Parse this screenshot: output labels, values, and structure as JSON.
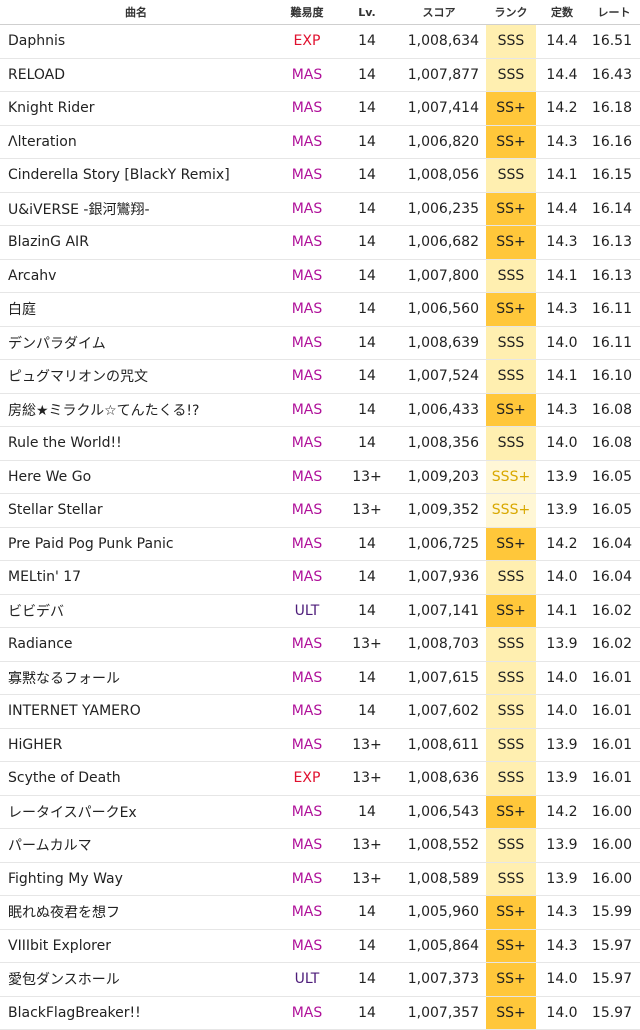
{
  "headers": {
    "name": "曲名",
    "difficulty": "難易度",
    "level": "Lv.",
    "score": "スコア",
    "rank": "ランク",
    "constant": "定数",
    "rate": "レート"
  },
  "colors": {
    "MAS": "#b0129a",
    "EXP": "#e0102e",
    "ULT": "#4d1c7a",
    "SSS": "#ffefb0",
    "SS+": "#ffc73a",
    "SSS+": "#fff7d6"
  },
  "rows": [
    {
      "name": "Daphnis",
      "difficulty": "EXP",
      "level": "14",
      "score": "1,008,634",
      "rank": "SSS",
      "constant": "14.4",
      "rate": "16.51"
    },
    {
      "name": "RELOAD",
      "difficulty": "MAS",
      "level": "14",
      "score": "1,007,877",
      "rank": "SSS",
      "constant": "14.4",
      "rate": "16.43"
    },
    {
      "name": "Knight Rider",
      "difficulty": "MAS",
      "level": "14",
      "score": "1,007,414",
      "rank": "SS+",
      "constant": "14.2",
      "rate": "16.18"
    },
    {
      "name": "Λlteration",
      "difficulty": "MAS",
      "level": "14",
      "score": "1,006,820",
      "rank": "SS+",
      "constant": "14.3",
      "rate": "16.16"
    },
    {
      "name": "Cinderella Story [BlackY Remix]",
      "difficulty": "MAS",
      "level": "14",
      "score": "1,008,056",
      "rank": "SSS",
      "constant": "14.1",
      "rate": "16.15"
    },
    {
      "name": "U&iVERSE -銀河鸞翔-",
      "difficulty": "MAS",
      "level": "14",
      "score": "1,006,235",
      "rank": "SS+",
      "constant": "14.4",
      "rate": "16.14"
    },
    {
      "name": "BlazinG AIR",
      "difficulty": "MAS",
      "level": "14",
      "score": "1,006,682",
      "rank": "SS+",
      "constant": "14.3",
      "rate": "16.13"
    },
    {
      "name": "Arcahv",
      "difficulty": "MAS",
      "level": "14",
      "score": "1,007,800",
      "rank": "SSS",
      "constant": "14.1",
      "rate": "16.13"
    },
    {
      "name": "白庭",
      "difficulty": "MAS",
      "level": "14",
      "score": "1,006,560",
      "rank": "SS+",
      "constant": "14.3",
      "rate": "16.11"
    },
    {
      "name": "デンパラダイム",
      "difficulty": "MAS",
      "level": "14",
      "score": "1,008,639",
      "rank": "SSS",
      "constant": "14.0",
      "rate": "16.11"
    },
    {
      "name": "ピュグマリオンの咒文",
      "difficulty": "MAS",
      "level": "14",
      "score": "1,007,524",
      "rank": "SSS",
      "constant": "14.1",
      "rate": "16.10"
    },
    {
      "name": "房総★ミラクル☆てんたくる!?",
      "difficulty": "MAS",
      "level": "14",
      "score": "1,006,433",
      "rank": "SS+",
      "constant": "14.3",
      "rate": "16.08"
    },
    {
      "name": "Rule the World!!",
      "difficulty": "MAS",
      "level": "14",
      "score": "1,008,356",
      "rank": "SSS",
      "constant": "14.0",
      "rate": "16.08"
    },
    {
      "name": "Here We Go",
      "difficulty": "MAS",
      "level": "13+",
      "score": "1,009,203",
      "rank": "SSS+",
      "constant": "13.9",
      "rate": "16.05"
    },
    {
      "name": "Stellar Stellar",
      "difficulty": "MAS",
      "level": "13+",
      "score": "1,009,352",
      "rank": "SSS+",
      "constant": "13.9",
      "rate": "16.05"
    },
    {
      "name": "Pre Paid Pog Punk Panic",
      "difficulty": "MAS",
      "level": "14",
      "score": "1,006,725",
      "rank": "SS+",
      "constant": "14.2",
      "rate": "16.04"
    },
    {
      "name": "MELtin' 17",
      "difficulty": "MAS",
      "level": "14",
      "score": "1,007,936",
      "rank": "SSS",
      "constant": "14.0",
      "rate": "16.04"
    },
    {
      "name": "ビビデバ",
      "difficulty": "ULT",
      "level": "14",
      "score": "1,007,141",
      "rank": "SS+",
      "constant": "14.1",
      "rate": "16.02"
    },
    {
      "name": "Radiance",
      "difficulty": "MAS",
      "level": "13+",
      "score": "1,008,703",
      "rank": "SSS",
      "constant": "13.9",
      "rate": "16.02"
    },
    {
      "name": "寡黙なるフォール",
      "difficulty": "MAS",
      "level": "14",
      "score": "1,007,615",
      "rank": "SSS",
      "constant": "14.0",
      "rate": "16.01"
    },
    {
      "name": "INTERNET YAMERO",
      "difficulty": "MAS",
      "level": "14",
      "score": "1,007,602",
      "rank": "SSS",
      "constant": "14.0",
      "rate": "16.01"
    },
    {
      "name": "HiGHER",
      "difficulty": "MAS",
      "level": "13+",
      "score": "1,008,611",
      "rank": "SSS",
      "constant": "13.9",
      "rate": "16.01"
    },
    {
      "name": "Scythe of Death",
      "difficulty": "EXP",
      "level": "13+",
      "score": "1,008,636",
      "rank": "SSS",
      "constant": "13.9",
      "rate": "16.01"
    },
    {
      "name": "レータイスパークEx",
      "difficulty": "MAS",
      "level": "14",
      "score": "1,006,543",
      "rank": "SS+",
      "constant": "14.2",
      "rate": "16.00"
    },
    {
      "name": "パームカルマ",
      "difficulty": "MAS",
      "level": "13+",
      "score": "1,008,552",
      "rank": "SSS",
      "constant": "13.9",
      "rate": "16.00"
    },
    {
      "name": "Fighting My Way",
      "difficulty": "MAS",
      "level": "13+",
      "score": "1,008,589",
      "rank": "SSS",
      "constant": "13.9",
      "rate": "16.00"
    },
    {
      "name": "眠れぬ夜君を想フ",
      "difficulty": "MAS",
      "level": "14",
      "score": "1,005,960",
      "rank": "SS+",
      "constant": "14.3",
      "rate": "15.99"
    },
    {
      "name": "VIIIbit Explorer",
      "difficulty": "MAS",
      "level": "14",
      "score": "1,005,864",
      "rank": "SS+",
      "constant": "14.3",
      "rate": "15.97"
    },
    {
      "name": "愛包ダンスホール",
      "difficulty": "ULT",
      "level": "14",
      "score": "1,007,373",
      "rank": "SS+",
      "constant": "14.0",
      "rate": "15.97"
    },
    {
      "name": "BlackFlagBreaker!!",
      "difficulty": "MAS",
      "level": "14",
      "score": "1,007,357",
      "rank": "SS+",
      "constant": "14.0",
      "rate": "15.97"
    }
  ]
}
